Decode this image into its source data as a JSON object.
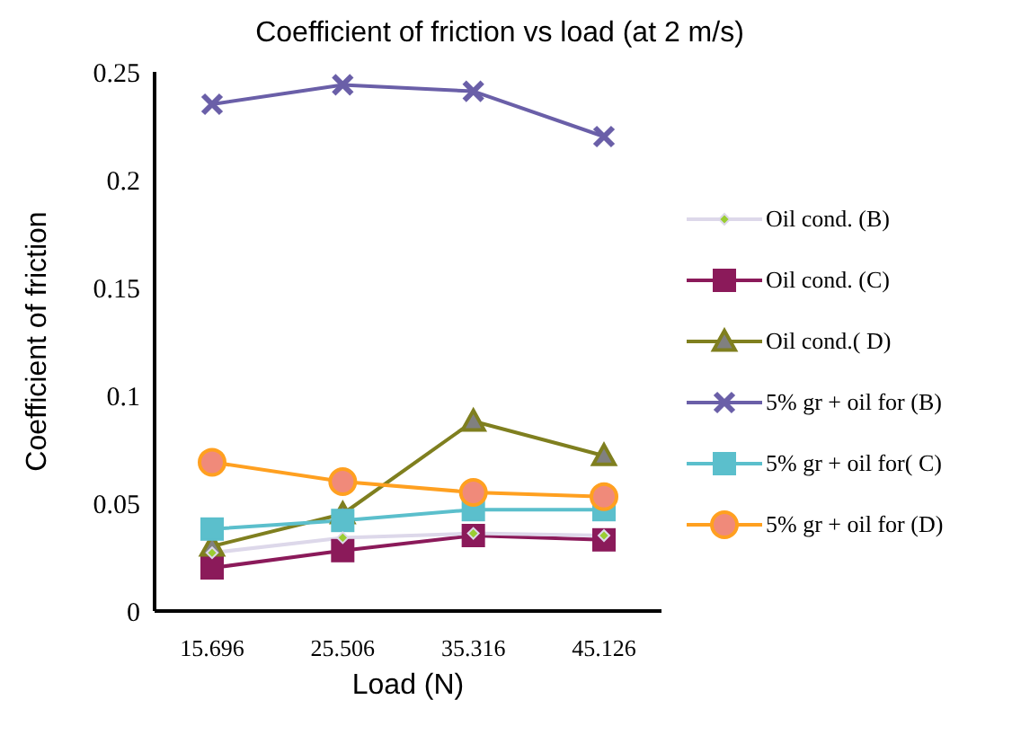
{
  "chart_data": {
    "type": "line",
    "title": "Coefficient of friction vs load (at 2 m/s)",
    "xlabel": "Load (N)",
    "ylabel": "Coefficient of friction",
    "categories": [
      "15.696",
      "25.506",
      "35.316",
      "45.126"
    ],
    "ylim": [
      0,
      0.25
    ],
    "yticks": [
      0,
      0.05,
      0.1,
      0.15,
      0.2,
      0.25
    ],
    "grid": false,
    "legend": "right",
    "series": [
      {
        "name": "Oil cond. (B)",
        "color": "#ddd8ea",
        "marker": "diamond",
        "values": [
          0.027,
          0.034,
          0.036,
          0.035
        ]
      },
      {
        "name": "Oil cond. (C)",
        "color": "#8b1a5a",
        "marker": "square",
        "values": [
          0.02,
          0.028,
          0.035,
          0.033
        ]
      },
      {
        "name": "Oil cond.( D)",
        "color": "#7f7f1f",
        "marker": "triangle",
        "values": [
          0.03,
          0.045,
          0.088,
          0.072
        ]
      },
      {
        "name": "5% gr + oil for (B)",
        "color": "#6a5fa8",
        "marker": "cross",
        "values": [
          0.235,
          0.244,
          0.241,
          0.22
        ]
      },
      {
        "name": "5% gr + oil for( C)",
        "color": "#5bbfcc",
        "marker": "square",
        "values": [
          0.038,
          0.042,
          0.047,
          0.047
        ]
      },
      {
        "name": "5% gr + oil for (D)",
        "color": "#ffa020",
        "marker": "circle",
        "values": [
          0.069,
          0.06,
          0.055,
          0.053
        ]
      }
    ]
  }
}
